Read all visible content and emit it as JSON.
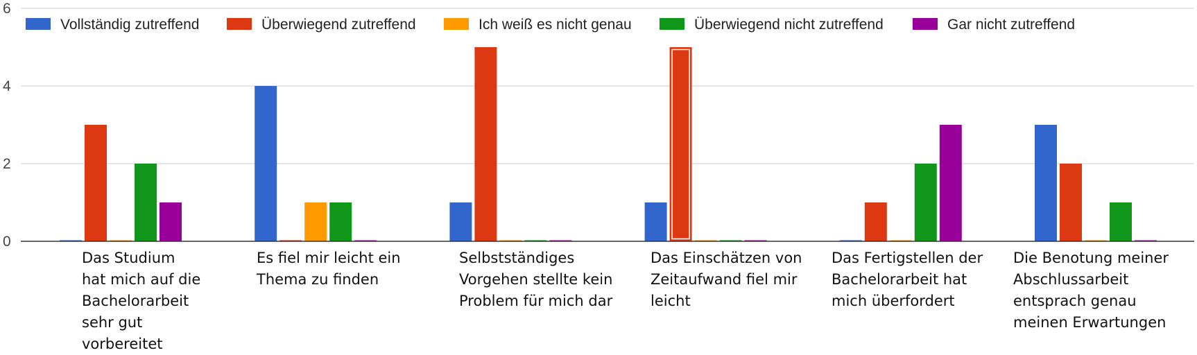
{
  "chart_data": {
    "type": "bar",
    "title": "",
    "xlabel": "",
    "ylabel": "",
    "ylim": [
      0,
      6
    ],
    "yticks": [
      0,
      2,
      4,
      6
    ],
    "grid": true,
    "legend_position": "top",
    "categories": [
      "Das Studium hat mich auf die Bachelorarbeit sehr gut vorbereitet",
      "Es fiel mir leicht ein Thema zu finden",
      "Selbstständiges Vorgehen stellte kein Problem für mich dar",
      "Das Einschätzen von Zeitaufwand fiel mir leicht",
      "Das Fertigstellen der Bachelorarbeit hat mich überfordert",
      "Die Benotung meiner Abschlussarbeit entsprach genau meinen Erwartungen"
    ],
    "series": [
      {
        "name": "Vollständig zutreffend",
        "color": "#3366cc",
        "values": [
          0,
          4,
          1,
          1,
          0,
          3
        ]
      },
      {
        "name": "Überwiegend zutreffend",
        "color": "#dc3912",
        "values": [
          3,
          0,
          5,
          5,
          1,
          2
        ]
      },
      {
        "name": "Ich weiß es nicht genau",
        "color": "#ff9900",
        "values": [
          0,
          1,
          0,
          0,
          0,
          0
        ]
      },
      {
        "name": "Überwiegend nicht zutreffend",
        "color": "#109618",
        "values": [
          2,
          1,
          0,
          0,
          2,
          1
        ]
      },
      {
        "name": "Gar nicht zutreffend",
        "color": "#990099",
        "values": [
          1,
          0,
          0,
          0,
          3,
          0
        ]
      }
    ],
    "highlighted_bar": {
      "category_index": 3,
      "series_index": 1
    }
  }
}
